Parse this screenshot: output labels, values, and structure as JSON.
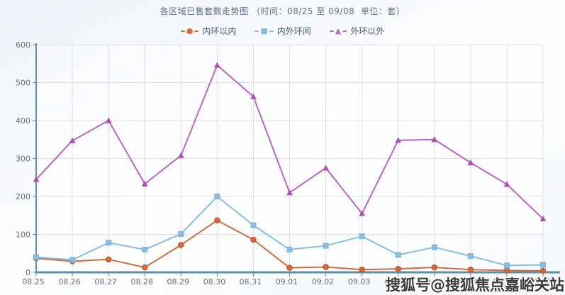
{
  "header": {
    "title": "各区域已售套数走势图 （时间：08/25 至 09/08  单位：套）"
  },
  "watermark": {
    "text": "搜狐号@搜狐焦点嘉峪关站"
  },
  "chart_data": {
    "type": "line",
    "title": "各区域已售套数走势图",
    "time_range": "时间：08/25 至 09/08",
    "unit": "单位：套",
    "categories": [
      "08.25",
      "08.26",
      "08.27",
      "08.28",
      "08.29",
      "08.30",
      "08.31",
      "09.01",
      "09.02",
      "09.03",
      "09.04",
      "09.05",
      "09.06",
      "09.07",
      "09.08"
    ],
    "series": [
      {
        "name": "内环以内",
        "id": "inner-ring",
        "marker": "circle",
        "color": "#d06a3f",
        "marker_color": "#c65f33",
        "values": [
          37,
          29,
          34,
          13,
          72,
          137,
          86,
          12,
          14,
          7,
          9,
          13,
          7,
          5,
          4
        ]
      },
      {
        "name": "内外环间",
        "id": "inner-outer-ring",
        "marker": "square",
        "color": "#8abede",
        "marker_color": "#7bb2d6",
        "values": [
          40,
          33,
          78,
          60,
          101,
          200,
          124,
          60,
          70,
          95,
          46,
          66,
          43,
          18,
          20
        ]
      },
      {
        "name": "外环以外",
        "id": "outer-ring",
        "marker": "triangle",
        "color": "#bb65c4",
        "marker_color": "#a953b4",
        "values": [
          245,
          347,
          400,
          233,
          308,
          546,
          463,
          210,
          275,
          155,
          348,
          350,
          289,
          232,
          141
        ]
      }
    ],
    "ylim": [
      0,
      600
    ],
    "yticks": [
      0,
      100,
      200,
      300,
      400,
      500,
      600
    ],
    "grid": true,
    "legend_position": "top-center",
    "axis_color": "#5b8fa8",
    "grid_color": "#dcdee0",
    "tick_label_color": "#66707a"
  }
}
